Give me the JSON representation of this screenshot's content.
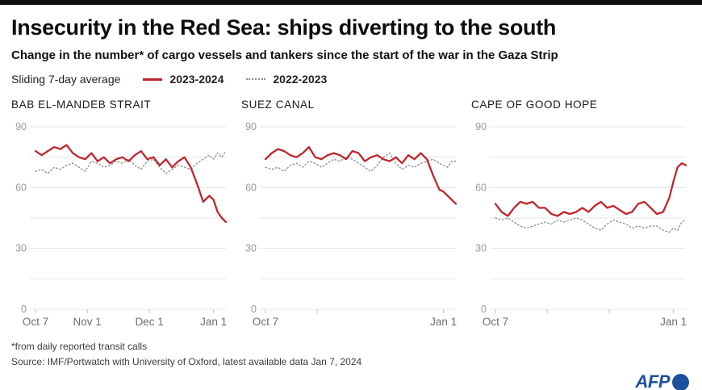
{
  "header": {
    "title": "Insecurity in the Red Sea: ships diverting to the south",
    "subtitle": "Change in the number* of cargo vessels and tankers since the start of the war in the Gaza Strip"
  },
  "legend": {
    "label": "Sliding 7-day average",
    "series": [
      {
        "name": "2023-2024",
        "color": "#c1262d",
        "style": "solid"
      },
      {
        "name": "2022-2023",
        "color": "#8c8c8c",
        "style": "dotted"
      }
    ]
  },
  "chart_data": [
    {
      "type": "line",
      "title": "BAB EL-MANDEB STRAIT",
      "ylim": [
        0,
        90
      ],
      "yticks": [
        0,
        30,
        60,
        90
      ],
      "grid_step": 15,
      "x_days": [
        0,
        3,
        6,
        9,
        12,
        15,
        18,
        21,
        24,
        27,
        30,
        33,
        36,
        39,
        42,
        45,
        48,
        51,
        54,
        57,
        60,
        63,
        66,
        69,
        72,
        75,
        78,
        81,
        84,
        86,
        88,
        90,
        92
      ],
      "xticks": [
        {
          "day": 0,
          "label": "Oct 7"
        },
        {
          "day": 25,
          "label": "Nov 1"
        },
        {
          "day": 55,
          "label": "Dec 1"
        },
        {
          "day": 86,
          "label": "Jan 1"
        }
      ],
      "series": [
        {
          "name": "2023-2024",
          "color": "#c1262d",
          "style": "solid",
          "values": [
            78,
            76,
            78,
            80,
            79,
            81,
            77,
            75,
            74,
            77,
            73,
            75,
            72,
            74,
            75,
            73,
            76,
            78,
            74,
            75,
            71,
            74,
            70,
            73,
            75,
            70,
            62,
            53,
            56,
            54,
            48,
            45,
            43
          ]
        },
        {
          "name": "2022-2023",
          "color": "#8c8c8c",
          "style": "dotted",
          "values": [
            68,
            69,
            67,
            70,
            69,
            71,
            72,
            70,
            68,
            73,
            72,
            70,
            71,
            73,
            72,
            74,
            71,
            69,
            73,
            74,
            70,
            67,
            69,
            71,
            70,
            69,
            72,
            74,
            76,
            74,
            77,
            75,
            78
          ]
        }
      ]
    },
    {
      "type": "line",
      "title": "SUEZ CANAL",
      "ylim": [
        0,
        90
      ],
      "yticks": [
        0,
        30,
        60,
        90
      ],
      "grid_step": 15,
      "x_days": [
        0,
        3,
        6,
        9,
        12,
        15,
        18,
        21,
        24,
        27,
        30,
        33,
        36,
        39,
        42,
        45,
        48,
        51,
        54,
        57,
        60,
        63,
        66,
        69,
        72,
        75,
        78,
        81,
        84,
        86,
        88,
        90,
        92
      ],
      "xticks": [
        {
          "day": 0,
          "label": "Oct 7"
        },
        {
          "day": 25,
          "label": ""
        },
        {
          "day": 86,
          "label": "Jan 1"
        }
      ],
      "series": [
        {
          "name": "2023-2024",
          "color": "#c1262d",
          "style": "solid",
          "values": [
            74,
            77,
            79,
            78,
            76,
            75,
            77,
            80,
            75,
            74,
            76,
            77,
            76,
            74,
            78,
            77,
            73,
            75,
            76,
            74,
            73,
            75,
            72,
            76,
            74,
            77,
            74,
            66,
            59,
            58,
            56,
            54,
            52
          ]
        },
        {
          "name": "2022-2023",
          "color": "#8c8c8c",
          "style": "dotted",
          "values": [
            70,
            69,
            70,
            68,
            71,
            72,
            70,
            73,
            72,
            70,
            72,
            74,
            73,
            75,
            74,
            72,
            70,
            68,
            71,
            75,
            77,
            72,
            69,
            71,
            70,
            72,
            73,
            74,
            72,
            71,
            70,
            73,
            73
          ]
        }
      ]
    },
    {
      "type": "line",
      "title": "CAPE OF GOOD HOPE",
      "ylim": [
        0,
        90
      ],
      "yticks": [
        0,
        30,
        60,
        90
      ],
      "grid_step": 15,
      "x_days": [
        0,
        3,
        6,
        9,
        12,
        15,
        18,
        21,
        24,
        27,
        30,
        33,
        36,
        39,
        42,
        45,
        48,
        51,
        54,
        57,
        60,
        63,
        66,
        69,
        72,
        75,
        78,
        81,
        84,
        86,
        88,
        90,
        92
      ],
      "xticks": [
        {
          "day": 0,
          "label": "Oct 7"
        },
        {
          "day": 25,
          "label": ""
        },
        {
          "day": 55,
          "label": ""
        },
        {
          "day": 86,
          "label": "Jan 1"
        }
      ],
      "series": [
        {
          "name": "2023-2024",
          "color": "#c1262d",
          "style": "solid",
          "values": [
            52,
            48,
            46,
            50,
            53,
            52,
            53,
            50,
            50,
            47,
            46,
            48,
            47,
            48,
            50,
            48,
            51,
            53,
            50,
            51,
            49,
            47,
            48,
            52,
            53,
            50,
            47,
            48,
            55,
            63,
            70,
            72,
            71
          ]
        },
        {
          "name": "2022-2023",
          "color": "#8c8c8c",
          "style": "dotted",
          "values": [
            45,
            44,
            45,
            43,
            41,
            40,
            41,
            42,
            43,
            42,
            44,
            43,
            44,
            45,
            44,
            42,
            40,
            39,
            42,
            44,
            43,
            42,
            40,
            41,
            40,
            41,
            41,
            39,
            38,
            40,
            39,
            43,
            44
          ]
        }
      ]
    }
  ],
  "footer": {
    "footnote": "*from daily reported transit calls",
    "source": "Source: IMF/Portwatch with University of Oxford, latest available data Jan 7, 2024",
    "logo": "AFP",
    "logo_color": "#1d4f9f"
  }
}
